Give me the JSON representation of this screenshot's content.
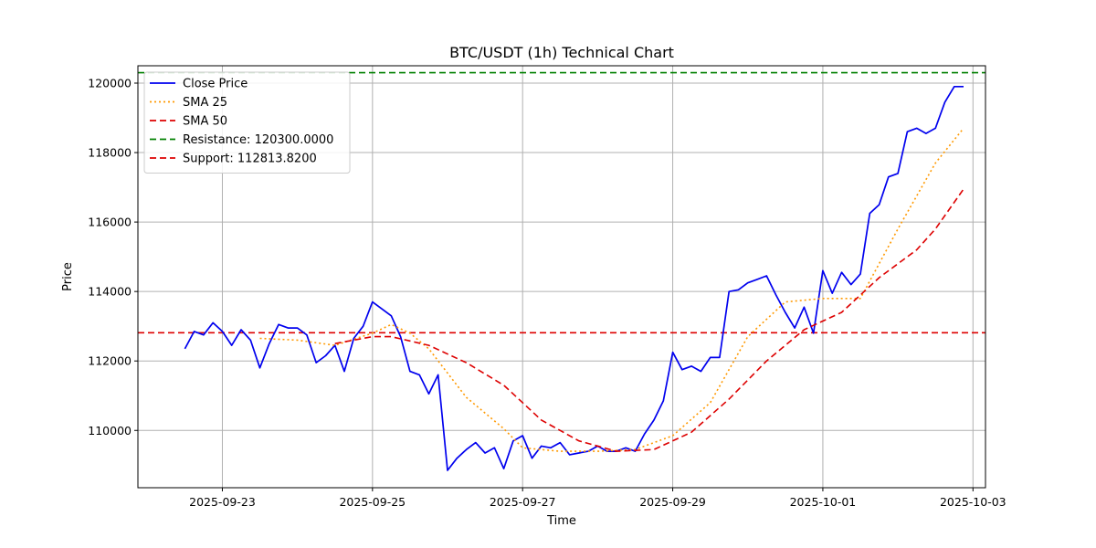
{
  "chart_data": {
    "type": "line",
    "title": "BTC/USDT (1h) Technical Chart",
    "xlabel": "Time",
    "ylabel": "Price",
    "x_range": [
      "2025-09-21T21:00",
      "2025-10-03T04:00"
    ],
    "ylim": [
      108350,
      120500
    ],
    "grid": true,
    "legend_position": "top-left",
    "x_ticks": [
      {
        "value": "2025-09-23",
        "label": "2025-09-23"
      },
      {
        "value": "2025-09-25",
        "label": "2025-09-25"
      },
      {
        "value": "2025-09-27",
        "label": "2025-09-27"
      },
      {
        "value": "2025-09-29",
        "label": "2025-09-29"
      },
      {
        "value": "2025-10-01",
        "label": "2025-10-01"
      },
      {
        "value": "2025-10-03",
        "label": "2025-10-03"
      }
    ],
    "y_ticks": [
      110000,
      112000,
      114000,
      116000,
      118000,
      120000
    ],
    "y_tick_labels": [
      "110000",
      "112000",
      "114000",
      "116000",
      "118000",
      "120000"
    ],
    "series": [
      {
        "name": "Close Price",
        "color": "#0000ee",
        "style": "solid",
        "points": [
          [
            "2025-09-22T12:00",
            112350
          ],
          [
            "2025-09-22T15:00",
            112850
          ],
          [
            "2025-09-22T18:00",
            112750
          ],
          [
            "2025-09-22T21:00",
            113100
          ],
          [
            "2025-09-23T00:00",
            112850
          ],
          [
            "2025-09-23T03:00",
            112450
          ],
          [
            "2025-09-23T06:00",
            112900
          ],
          [
            "2025-09-23T09:00",
            112600
          ],
          [
            "2025-09-23T12:00",
            111800
          ],
          [
            "2025-09-23T15:00",
            112500
          ],
          [
            "2025-09-23T18:00",
            113050
          ],
          [
            "2025-09-23T21:00",
            112950
          ],
          [
            "2025-09-24T00:00",
            112950
          ],
          [
            "2025-09-24T03:00",
            112750
          ],
          [
            "2025-09-24T06:00",
            111950
          ],
          [
            "2025-09-24T09:00",
            112150
          ],
          [
            "2025-09-24T12:00",
            112450
          ],
          [
            "2025-09-24T15:00",
            111700
          ],
          [
            "2025-09-24T18:00",
            112650
          ],
          [
            "2025-09-24T21:00",
            113000
          ],
          [
            "2025-09-25T00:00",
            113700
          ],
          [
            "2025-09-25T03:00",
            113500
          ],
          [
            "2025-09-25T06:00",
            113300
          ],
          [
            "2025-09-25T09:00",
            112700
          ],
          [
            "2025-09-25T12:00",
            111700
          ],
          [
            "2025-09-25T15:00",
            111600
          ],
          [
            "2025-09-25T18:00",
            111050
          ],
          [
            "2025-09-25T21:00",
            111600
          ],
          [
            "2025-09-26T00:00",
            108850
          ],
          [
            "2025-09-26T03:00",
            109200
          ],
          [
            "2025-09-26T06:00",
            109450
          ],
          [
            "2025-09-26T09:00",
            109650
          ],
          [
            "2025-09-26T12:00",
            109350
          ],
          [
            "2025-09-26T15:00",
            109500
          ],
          [
            "2025-09-26T18:00",
            108900
          ],
          [
            "2025-09-26T21:00",
            109700
          ],
          [
            "2025-09-27T00:00",
            109850
          ],
          [
            "2025-09-27T03:00",
            109200
          ],
          [
            "2025-09-27T06:00",
            109550
          ],
          [
            "2025-09-27T09:00",
            109500
          ],
          [
            "2025-09-27T12:00",
            109650
          ],
          [
            "2025-09-27T15:00",
            109300
          ],
          [
            "2025-09-27T18:00",
            109350
          ],
          [
            "2025-09-27T21:00",
            109400
          ],
          [
            "2025-09-28T00:00",
            109550
          ],
          [
            "2025-09-28T03:00",
            109400
          ],
          [
            "2025-09-28T06:00",
            109400
          ],
          [
            "2025-09-28T09:00",
            109500
          ],
          [
            "2025-09-28T12:00",
            109400
          ],
          [
            "2025-09-28T15:00",
            109900
          ],
          [
            "2025-09-28T18:00",
            110300
          ],
          [
            "2025-09-28T21:00",
            110850
          ],
          [
            "2025-09-29T00:00",
            112250
          ],
          [
            "2025-09-29T03:00",
            111750
          ],
          [
            "2025-09-29T06:00",
            111850
          ],
          [
            "2025-09-29T09:00",
            111700
          ],
          [
            "2025-09-29T12:00",
            112100
          ],
          [
            "2025-09-29T15:00",
            112100
          ],
          [
            "2025-09-29T18:00",
            114000
          ],
          [
            "2025-09-29T21:00",
            114050
          ],
          [
            "2025-09-30T00:00",
            114250
          ],
          [
            "2025-09-30T03:00",
            114350
          ],
          [
            "2025-09-30T06:00",
            114450
          ],
          [
            "2025-09-30T09:00",
            113900
          ],
          [
            "2025-09-30T12:00",
            113400
          ],
          [
            "2025-09-30T15:00",
            112950
          ],
          [
            "2025-09-30T18:00",
            113550
          ],
          [
            "2025-09-30T21:00",
            112800
          ],
          [
            "2025-10-01T00:00",
            114600
          ],
          [
            "2025-10-01T03:00",
            113950
          ],
          [
            "2025-10-01T06:00",
            114550
          ],
          [
            "2025-10-01T09:00",
            114200
          ],
          [
            "2025-10-01T12:00",
            114500
          ],
          [
            "2025-10-01T15:00",
            116250
          ],
          [
            "2025-10-01T18:00",
            116500
          ],
          [
            "2025-10-01T21:00",
            117300
          ],
          [
            "2025-10-02T00:00",
            117400
          ],
          [
            "2025-10-02T03:00",
            118600
          ],
          [
            "2025-10-02T06:00",
            118700
          ],
          [
            "2025-10-02T09:00",
            118550
          ],
          [
            "2025-10-02T12:00",
            118700
          ],
          [
            "2025-10-02T15:00",
            119450
          ],
          [
            "2025-10-02T18:00",
            119900
          ],
          [
            "2025-10-02T21:00",
            119900
          ]
        ]
      },
      {
        "name": "SMA 25",
        "color": "#ff9900",
        "style": "dotted",
        "points": [
          [
            "2025-09-23T12:00",
            112650
          ],
          [
            "2025-09-24T00:00",
            112600
          ],
          [
            "2025-09-24T12:00",
            112450
          ],
          [
            "2025-09-25T00:00",
            112800
          ],
          [
            "2025-09-25T06:00",
            113050
          ],
          [
            "2025-09-25T12:00",
            112800
          ],
          [
            "2025-09-25T18:00",
            112350
          ],
          [
            "2025-09-26T06:00",
            110950
          ],
          [
            "2025-09-26T18:00",
            110050
          ],
          [
            "2025-09-27T00:00",
            109500
          ],
          [
            "2025-09-27T12:00",
            109400
          ],
          [
            "2025-09-28T00:00",
            109400
          ],
          [
            "2025-09-28T12:00",
            109450
          ],
          [
            "2025-09-29T00:00",
            109850
          ],
          [
            "2025-09-29T12:00",
            110800
          ],
          [
            "2025-09-30T00:00",
            112700
          ],
          [
            "2025-09-30T12:00",
            113700
          ],
          [
            "2025-10-01T00:00",
            113800
          ],
          [
            "2025-10-01T12:00",
            113800
          ],
          [
            "2025-10-02T00:00",
            115800
          ],
          [
            "2025-10-02T12:00",
            117700
          ],
          [
            "2025-10-02T21:00",
            118700
          ]
        ]
      },
      {
        "name": "SMA 50",
        "color": "#dd0000",
        "style": "dashed",
        "points": [
          [
            "2025-09-24T12:00",
            112500
          ],
          [
            "2025-09-25T00:00",
            112700
          ],
          [
            "2025-09-25T06:00",
            112700
          ],
          [
            "2025-09-25T18:00",
            112450
          ],
          [
            "2025-09-26T06:00",
            111950
          ],
          [
            "2025-09-26T18:00",
            111300
          ],
          [
            "2025-09-27T06:00",
            110300
          ],
          [
            "2025-09-27T18:00",
            109700
          ],
          [
            "2025-09-28T06:00",
            109400
          ],
          [
            "2025-09-28T18:00",
            109450
          ],
          [
            "2025-09-29T06:00",
            109950
          ],
          [
            "2025-09-29T18:00",
            110900
          ],
          [
            "2025-09-30T06:00",
            112000
          ],
          [
            "2025-09-30T18:00",
            112900
          ],
          [
            "2025-10-01T06:00",
            113400
          ],
          [
            "2025-10-01T18:00",
            114400
          ],
          [
            "2025-10-02T06:00",
            115200
          ],
          [
            "2025-10-02T12:00",
            115800
          ],
          [
            "2025-10-02T21:00",
            116950
          ]
        ]
      }
    ],
    "horizontal_lines": [
      {
        "name": "Resistance: 120300.0000",
        "value": 120300.0,
        "color": "#008000",
        "style": "dashed"
      },
      {
        "name": "Support: 112813.8200",
        "value": 112813.82,
        "color": "#dd0000",
        "style": "dashed"
      }
    ]
  }
}
